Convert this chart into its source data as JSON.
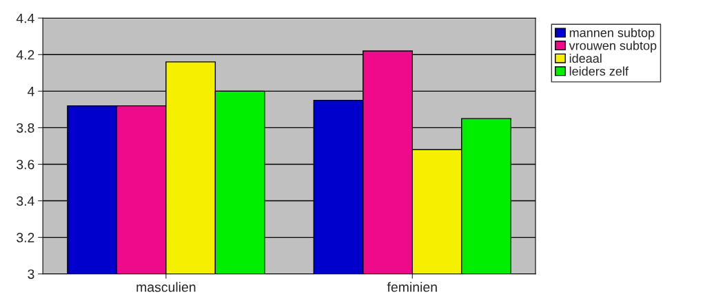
{
  "chart_data": {
    "type": "bar",
    "categories": [
      "masculien",
      "feminien"
    ],
    "series": [
      {
        "name": "mannen subtop",
        "color": "#0000cc",
        "values": [
          3.92,
          3.95
        ]
      },
      {
        "name": "vrouwen subtop",
        "color": "#ee0a8a",
        "values": [
          3.92,
          4.22
        ]
      },
      {
        "name": "ideaal",
        "color": "#f5f000",
        "values": [
          4.16,
          3.68
        ]
      },
      {
        "name": "leiders zelf",
        "color": "#00ee00",
        "values": [
          4.0,
          3.85
        ]
      }
    ],
    "ylim": [
      3,
      4.4
    ],
    "yticks": [
      3,
      3.2,
      3.4,
      3.6,
      3.8,
      4,
      4.2,
      4.4
    ],
    "grid": "y",
    "legend": "right"
  }
}
